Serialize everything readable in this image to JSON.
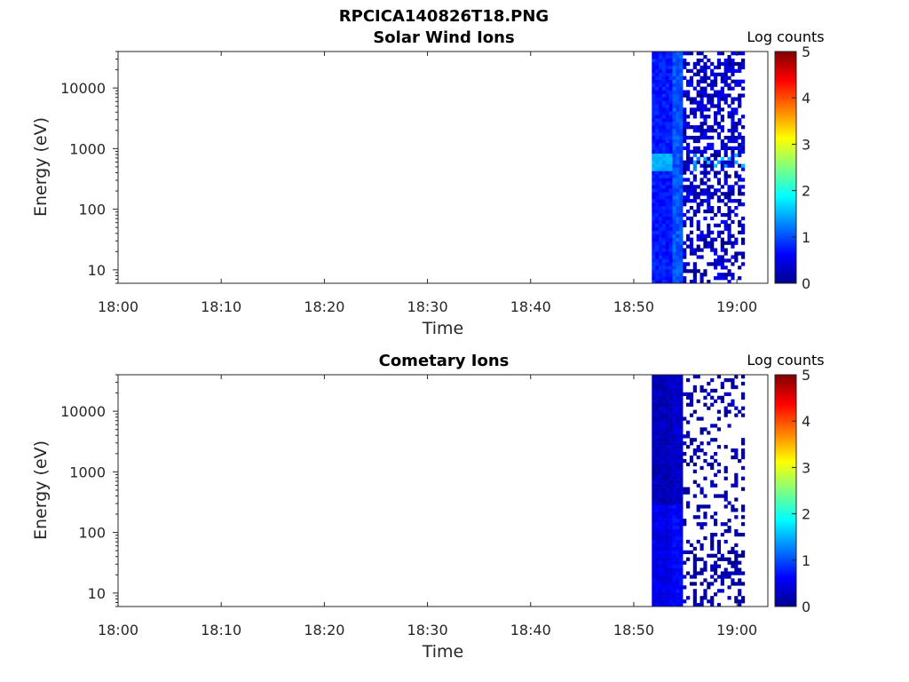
{
  "figure_title": "RPCICA140826T18.PNG",
  "colors": {
    "axis": "#262626",
    "colormap": "jet",
    "background": "#ffffff"
  },
  "chart_data": [
    {
      "type": "heatmap",
      "title": "Solar Wind Ions",
      "xlabel": "Time",
      "ylabel": "Energy (eV)",
      "x_ticks": [
        "18:00",
        "18:10",
        "18:20",
        "18:30",
        "18:40",
        "18:50",
        "19:00"
      ],
      "y_ticks": [
        "10",
        "100",
        "1000",
        "10000"
      ],
      "y_scale": "log",
      "ylim_eV": [
        6,
        40000
      ],
      "xlim": [
        "18:00",
        "19:03"
      ],
      "colorbar": {
        "label": "Log counts",
        "ticks": [
          "0",
          "1",
          "2",
          "3",
          "4",
          "5"
        ],
        "range": [
          0,
          5
        ]
      },
      "data_window": {
        "start": "18:51:45",
        "end": "19:00:45"
      },
      "summary": "Dense low-level counts (log ~0.5-1) from 18:52 to 18:55 across all energies, with a brighter band near 600 eV (log ~1.5); sparse counts (log ~0-0.7) from 18:55 to 19:00, patches near 600 eV up to log ~1.7",
      "seed": 1917
    },
    {
      "type": "heatmap",
      "title": "Cometary Ions",
      "xlabel": "Time",
      "ylabel": "Energy (eV)",
      "x_ticks": [
        "18:00",
        "18:10",
        "18:20",
        "18:30",
        "18:40",
        "18:50",
        "19:00"
      ],
      "y_ticks": [
        "10",
        "100",
        "1000",
        "10000"
      ],
      "y_scale": "log",
      "ylim_eV": [
        6,
        40000
      ],
      "xlim": [
        "18:00",
        "19:03"
      ],
      "colorbar": {
        "label": "Log counts",
        "ticks": [
          "0",
          "1",
          "2",
          "3",
          "4",
          "5"
        ],
        "range": [
          0,
          5
        ]
      },
      "data_window": {
        "start": "18:51:45",
        "end": "19:00:45"
      },
      "summary": "Dense counts (log ~0.1-0.6) from 18:52 to 18:55, slightly higher at low energies; very sparse counts (log ~0-0.4) from 18:55 to 19:00",
      "seed": 4242
    }
  ]
}
